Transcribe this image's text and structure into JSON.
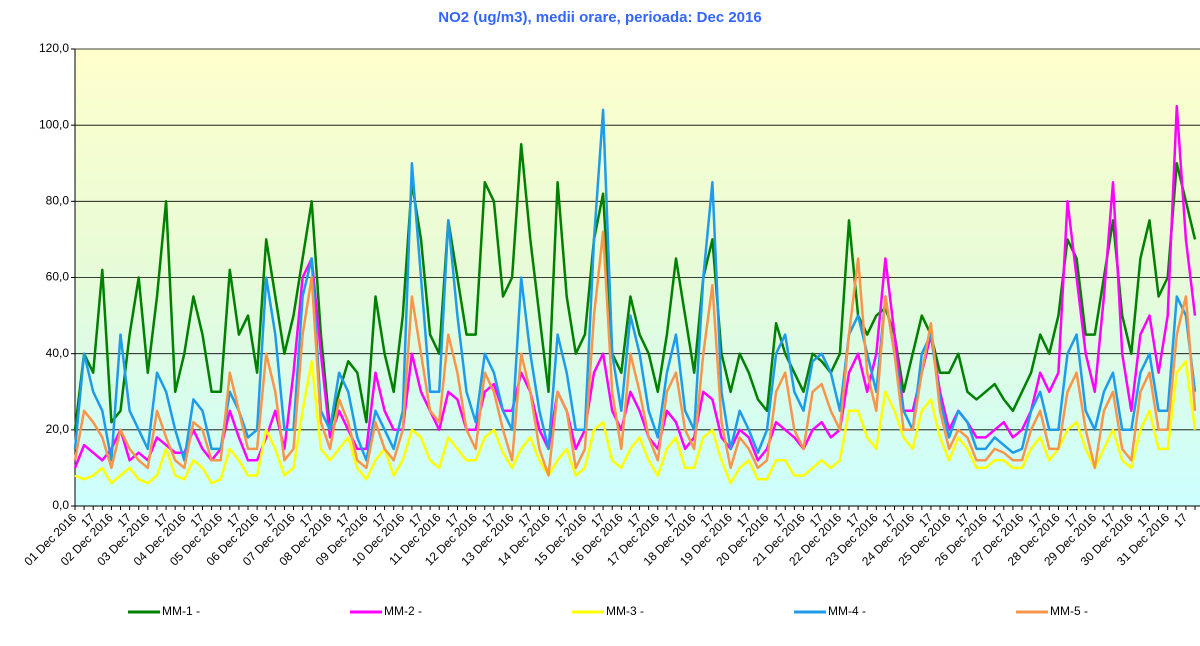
{
  "chart_data": {
    "type": "line",
    "title": "NO2 (ug/m3), medii orare, perioada: Dec 2016",
    "categories": [
      "01 Dec 2016",
      null,
      "17",
      null,
      "02 Dec 2016",
      null,
      "17",
      null,
      "03 Dec 2016",
      null,
      "17",
      null,
      "04 Dec 2016",
      null,
      "17",
      null,
      "05 Dec 2016",
      null,
      "17",
      null,
      "06 Dec 2016",
      null,
      "17",
      null,
      "07 Dec 2016",
      null,
      "17",
      null,
      "08 Dec 2016",
      null,
      "17",
      null,
      "09 Dec 2016",
      null,
      "17",
      null,
      "10 Dec 2016",
      null,
      "17",
      null,
      "11 Dec 2016",
      null,
      "17",
      null,
      "12 Dec 2016",
      null,
      "17",
      null,
      "13 Dec 2016",
      null,
      "17",
      null,
      "14 Dec 2016",
      null,
      "17",
      null,
      "15 Dec 2016",
      null,
      "17",
      null,
      "16 Dec 2016",
      null,
      "17",
      null,
      "17 Dec 2016",
      null,
      "17",
      null,
      "18 Dec 2016",
      null,
      "17",
      null,
      "19 Dec 2016",
      null,
      "17",
      null,
      "20 Dec 2016",
      null,
      "17",
      null,
      "21 Dec 2016",
      null,
      "17",
      null,
      "22 Dec 2016",
      null,
      "17",
      null,
      "23 Dec 2016",
      null,
      "17",
      null,
      "24 Dec 2016",
      null,
      "17",
      null,
      "25 Dec 2016",
      null,
      "17",
      null,
      "26 Dec 2016",
      null,
      "17",
      null,
      "27 Dec 2016",
      null,
      "17",
      null,
      "28 Dec 2016",
      null,
      "17",
      null,
      "29 Dec 2016",
      null,
      "17",
      null,
      "30 Dec 2016",
      null,
      "17",
      null,
      "31 Dec 2016",
      null,
      "17",
      null
    ],
    "ylim": [
      0,
      120
    ],
    "yticks": [
      {
        "value": 0,
        "label": "0,0"
      },
      {
        "value": 20,
        "label": "20,0"
      },
      {
        "value": 40,
        "label": "40,0"
      },
      {
        "value": 60,
        "label": "60,0"
      },
      {
        "value": 80,
        "label": "80,0"
      },
      {
        "value": 100,
        "label": "100,0"
      },
      {
        "value": 120,
        "label": "120,0"
      }
    ],
    "grid": true,
    "legend": "bottom",
    "series": [
      {
        "name": "MM-1 -",
        "color": "#008000",
        "values": [
          20,
          40,
          35,
          62,
          22,
          25,
          45,
          60,
          35,
          55,
          80,
          30,
          40,
          55,
          45,
          30,
          30,
          62,
          45,
          50,
          35,
          70,
          55,
          40,
          50,
          65,
          80,
          45,
          20,
          30,
          38,
          35,
          22,
          55,
          40,
          30,
          50,
          85,
          70,
          45,
          40,
          75,
          60,
          45,
          45,
          85,
          80,
          55,
          60,
          95,
          70,
          50,
          30,
          85,
          55,
          40,
          45,
          70,
          82,
          40,
          35,
          55,
          45,
          40,
          30,
          45,
          65,
          50,
          35,
          60,
          70,
          40,
          30,
          40,
          35,
          28,
          25,
          48,
          40,
          35,
          30,
          40,
          38,
          35,
          40,
          75,
          50,
          45,
          50,
          52,
          45,
          30,
          40,
          50,
          45,
          35,
          35,
          40,
          30,
          28,
          30,
          32,
          28,
          25,
          30,
          35,
          45,
          40,
          50,
          70,
          65,
          45,
          45,
          60,
          75,
          50,
          40,
          65,
          75,
          55,
          60,
          90,
          80,
          70
        ]
      },
      {
        "name": "MM-2 -",
        "color": "#ff00ff",
        "values": [
          10,
          16,
          14,
          12,
          15,
          20,
          12,
          14,
          12,
          18,
          16,
          14,
          14,
          20,
          15,
          12,
          15,
          25,
          18,
          12,
          12,
          18,
          25,
          15,
          35,
          60,
          65,
          40,
          18,
          25,
          20,
          15,
          15,
          35,
          25,
          20,
          20,
          40,
          30,
          25,
          20,
          30,
          28,
          20,
          20,
          30,
          32,
          25,
          25,
          35,
          30,
          20,
          15,
          30,
          25,
          15,
          20,
          35,
          40,
          25,
          20,
          30,
          25,
          18,
          15,
          25,
          22,
          15,
          18,
          30,
          28,
          18,
          15,
          20,
          18,
          12,
          15,
          22,
          20,
          18,
          15,
          20,
          22,
          18,
          20,
          35,
          40,
          30,
          40,
          65,
          45,
          25,
          25,
          35,
          45,
          30,
          20,
          25,
          22,
          18,
          18,
          20,
          22,
          18,
          20,
          25,
          35,
          30,
          35,
          80,
          60,
          40,
          30,
          55,
          85,
          40,
          25,
          45,
          50,
          35,
          50,
          105,
          70,
          50
        ]
      },
      {
        "name": "MM-3 -",
        "color": "#ffff00",
        "values": [
          8,
          7,
          8,
          10,
          6,
          8,
          10,
          7,
          6,
          8,
          15,
          8,
          7,
          12,
          10,
          6,
          7,
          15,
          12,
          8,
          8,
          20,
          15,
          8,
          10,
          25,
          38,
          15,
          12,
          15,
          18,
          10,
          7,
          12,
          15,
          8,
          12,
          20,
          18,
          12,
          10,
          18,
          15,
          12,
          12,
          18,
          20,
          14,
          10,
          15,
          18,
          12,
          8,
          12,
          15,
          8,
          10,
          20,
          22,
          12,
          10,
          15,
          18,
          12,
          8,
          15,
          18,
          10,
          10,
          18,
          20,
          12,
          6,
          10,
          12,
          7,
          7,
          12,
          12,
          8,
          8,
          10,
          12,
          10,
          12,
          25,
          25,
          18,
          15,
          30,
          25,
          18,
          15,
          25,
          28,
          18,
          12,
          18,
          15,
          10,
          10,
          12,
          12,
          10,
          10,
          15,
          18,
          12,
          15,
          20,
          22,
          15,
          10,
          15,
          20,
          12,
          10,
          20,
          25,
          15,
          15,
          35,
          38,
          20
        ]
      },
      {
        "name": "MM-4 -",
        "color": "#1e9be9",
        "values": [
          15,
          40,
          30,
          25,
          12,
          45,
          25,
          20,
          15,
          35,
          30,
          20,
          12,
          28,
          25,
          15,
          15,
          30,
          25,
          18,
          20,
          60,
          45,
          20,
          20,
          55,
          65,
          25,
          20,
          35,
          30,
          18,
          12,
          25,
          20,
          15,
          25,
          90,
          60,
          30,
          30,
          75,
          50,
          30,
          22,
          40,
          35,
          25,
          20,
          60,
          40,
          25,
          15,
          45,
          35,
          20,
          20,
          70,
          104,
          40,
          25,
          50,
          40,
          25,
          18,
          35,
          45,
          25,
          20,
          60,
          85,
          30,
          15,
          25,
          20,
          14,
          20,
          40,
          45,
          30,
          25,
          38,
          40,
          35,
          25,
          45,
          50,
          40,
          30,
          55,
          40,
          25,
          20,
          40,
          45,
          28,
          18,
          25,
          22,
          15,
          15,
          18,
          16,
          14,
          15,
          25,
          30,
          20,
          20,
          40,
          45,
          25,
          20,
          30,
          35,
          20,
          20,
          35,
          40,
          25,
          25,
          55,
          50,
          30
        ]
      },
      {
        "name": "MM-5 -",
        "color": "#f7964a",
        "values": [
          12,
          25,
          22,
          18,
          10,
          20,
          15,
          12,
          10,
          25,
          18,
          12,
          10,
          22,
          20,
          12,
          12,
          35,
          25,
          15,
          15,
          40,
          30,
          12,
          15,
          45,
          60,
          22,
          15,
          28,
          22,
          12,
          10,
          22,
          15,
          12,
          20,
          55,
          40,
          25,
          22,
          45,
          35,
          20,
          15,
          35,
          30,
          20,
          12,
          40,
          30,
          15,
          8,
          30,
          25,
          10,
          15,
          50,
          72,
          30,
          15,
          40,
          30,
          18,
          12,
          30,
          35,
          20,
          15,
          40,
          58,
          22,
          10,
          18,
          15,
          10,
          12,
          30,
          35,
          20,
          15,
          30,
          32,
          25,
          20,
          45,
          65,
          35,
          25,
          55,
          40,
          20,
          20,
          35,
          48,
          25,
          15,
          20,
          18,
          12,
          12,
          15,
          14,
          12,
          12,
          20,
          25,
          15,
          15,
          30,
          35,
          20,
          10,
          25,
          30,
          15,
          12,
          30,
          35,
          20,
          20,
          45,
          55,
          25
        ]
      }
    ]
  }
}
